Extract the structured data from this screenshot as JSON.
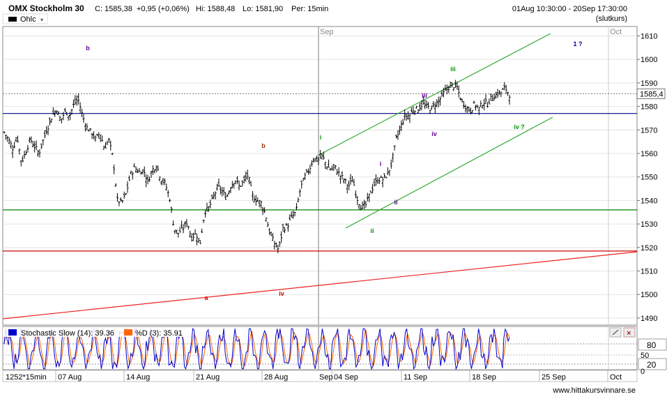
{
  "header": {
    "title": "OMX Stockholm 30",
    "close_label": "C: 1585,38",
    "change": "+0,95 (+0,06%)",
    "high": "Hi: 1588,48",
    "low": "Lo: 1581,90",
    "period": "Per: 15min",
    "range": "01Aug 10:30:00 - 20Sep 17:30:00",
    "range_note": "(slutkurs)",
    "chart_type": "Ohlc",
    "change_color": "#009900"
  },
  "chart_data": {
    "type": "ohlc",
    "y_ticks": [
      1490,
      1500,
      1510,
      1520,
      1530,
      1540,
      1550,
      1560,
      1570,
      1580,
      1590,
      1600,
      1610
    ],
    "ylim": [
      1487,
      1614
    ],
    "last_price_label": "1585,4",
    "last_price": 1585.4,
    "x_labels": [
      "07 Aug",
      "14 Aug",
      "21 Aug",
      "28 Aug",
      "04 Sep",
      "11 Sep",
      "18 Sep",
      "25 Sep",
      "Oct"
    ],
    "x_start_label": "1252*15min",
    "month_labels": [
      "Sep",
      "Oct"
    ],
    "price_path": [
      1569,
      1566,
      1562,
      1567,
      1556,
      1561,
      1566,
      1563,
      1560,
      1566,
      1571,
      1576,
      1579,
      1574,
      1578,
      1576,
      1581,
      1583,
      1576,
      1571,
      1569,
      1566,
      1569,
      1562,
      1566,
      1558,
      1540,
      1539,
      1543,
      1551,
      1554,
      1552,
      1553,
      1548,
      1553,
      1555,
      1549,
      1547,
      1541,
      1528,
      1526,
      1528,
      1531,
      1524,
      1526,
      1522,
      1535,
      1537,
      1541,
      1546,
      1544,
      1541,
      1546,
      1549,
      1546,
      1548,
      1551,
      1542,
      1540,
      1539,
      1534,
      1526,
      1522,
      1519,
      1528,
      1529,
      1533,
      1535,
      1545,
      1550,
      1553,
      1558,
      1557,
      1559,
      1555,
      1553,
      1554,
      1551,
      1549,
      1546,
      1549,
      1541,
      1537,
      1538,
      1543,
      1547,
      1549,
      1549,
      1551,
      1556,
      1566,
      1571,
      1576,
      1576,
      1579,
      1579,
      1581,
      1580,
      1579,
      1581,
      1583,
      1586,
      1588,
      1589,
      1588,
      1582,
      1580,
      1578,
      1581,
      1579,
      1582,
      1581,
      1584,
      1585,
      1586,
      1588,
      1585
    ],
    "horizontal_lines": [
      {
        "price": 1577,
        "color": "#000080"
      },
      {
        "price": 1536,
        "color": "#008000"
      },
      {
        "price": 1518.5,
        "color": "#cc0000"
      }
    ],
    "wave_labels": [
      {
        "text": "b",
        "color": "#660099"
      },
      {
        "text": "b",
        "color": "#993300"
      },
      {
        "text": "a",
        "color": "#cc0000"
      },
      {
        "text": "iv",
        "color": "#cc0000"
      },
      {
        "text": "i",
        "color": "#009900"
      },
      {
        "text": "i",
        "color": "#660099"
      },
      {
        "text": "ii",
        "color": "#660099"
      },
      {
        "text": "ii",
        "color": "#009900"
      },
      {
        "text": "iii",
        "color": "#660099"
      },
      {
        "text": "iv",
        "color": "#660099"
      },
      {
        "text": "iii",
        "color": "#009900"
      },
      {
        "text": "iv ?",
        "color": "#009900"
      },
      {
        "text": "1 ?",
        "color": "#000099"
      }
    ]
  },
  "stochastic": {
    "label": "Stochastic Slow (14): 39.36",
    "d_label": "%D (3): 35.91",
    "k_color": "#0000cc",
    "d_color": "#ff6600",
    "levels": [
      "80",
      "50",
      "20",
      "0"
    ]
  },
  "footer": {
    "watermark": "www.hittakursvinnare.se"
  }
}
